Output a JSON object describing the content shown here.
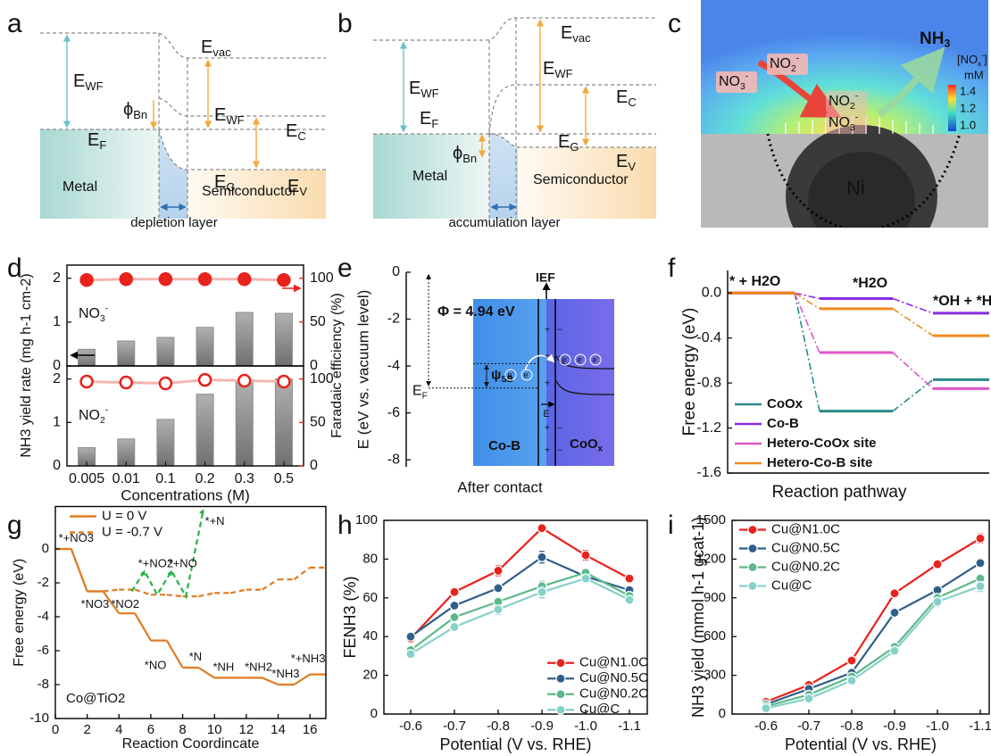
{
  "panel_labels": [
    "a",
    "b",
    "c",
    "d",
    "e",
    "f",
    "g",
    "h",
    "i"
  ],
  "diagrams": {
    "a": {
      "terms": [
        {
          "text": "E",
          "sub": "WF"
        },
        {
          "text": "E",
          "sub": "F"
        },
        {
          "text": "ϕ",
          "sub": "Bn"
        },
        {
          "text": "E",
          "sub": "vac"
        },
        {
          "text": "E",
          "sub": "WF"
        },
        {
          "text": "E",
          "sub": "C"
        },
        {
          "text": "E",
          "sub": "G"
        },
        {
          "text": "E",
          "sub": "V"
        }
      ],
      "metal": "Metal",
      "semiconductor": "Semiconductor",
      "layer": "depletion layer"
    },
    "b": {
      "terms": [
        {
          "text": "E",
          "sub": "vac"
        },
        {
          "text": "E",
          "sub": "WF"
        },
        {
          "text": "E",
          "sub": "F"
        },
        {
          "text": "ϕ",
          "sub": "Bn"
        },
        {
          "text": "E",
          "sub": "WF"
        },
        {
          "text": "E",
          "sub": "C"
        },
        {
          "text": "E",
          "sub": "G"
        },
        {
          "text": "E",
          "sub": "V"
        }
      ],
      "metal": "Metal",
      "semiconductor": "Semiconductor",
      "layer": "accumulation layer"
    },
    "c": {
      "ions": [
        {
          "text": "NO",
          "sub": "3",
          "sup": "-"
        },
        {
          "text": "NO",
          "sub": "2",
          "sup": "-"
        },
        {
          "text": "NO",
          "sub": "2",
          "sup": "-"
        },
        {
          "text": "NO",
          "sub": "3",
          "sup": "-"
        }
      ],
      "product": {
        "text": "NH",
        "sub": "3"
      },
      "colorbar_title": {
        "text": "[NO",
        "sub": "x",
        "sup": "-",
        "tail": "]"
      },
      "unit": "mM",
      "colorbar_ticks": [
        "1.4",
        "1.2",
        "1.0"
      ],
      "particle": "Ni"
    },
    "e": {
      "ylabel": "E (eV vs. vacuum level)",
      "xlabel": "After contact",
      "ylim": [
        -8.3,
        0
      ],
      "yticks": [
        0,
        -2,
        -4,
        -6,
        -8
      ],
      "work_function": "Φ = 4.94 eV",
      "field": "IEF",
      "fermi": {
        "text": "E",
        "sub": "F"
      },
      "barrier": {
        "text": "ψ",
        "sub": "SB"
      },
      "field_short": "E",
      "left": "Co-B",
      "right": {
        "text": "CoO",
        "sub": "x"
      },
      "electron": {
        "text": "e",
        "sup": "-"
      }
    }
  },
  "chart_data": [
    {
      "type": "bar",
      "xlabel": "Concentrations (M)",
      "ylabel": "NH3 yield rate (mg h-1 cm-2)",
      "y2label": "Faradaic efficiency (%)",
      "categories": [
        "0.005",
        "0.01",
        "0.1",
        "0.2",
        "0.3",
        "0.5"
      ],
      "subplots": [
        {
          "label": {
            "text": "NO",
            "sub": "3",
            "sup": "-"
          },
          "ylim": [
            0,
            2.3
          ],
          "yticks": [
            0,
            1,
            2
          ],
          "y2lim": [
            0,
            115
          ],
          "y2ticks": [
            0,
            50,
            100
          ],
          "series": [
            {
              "color": "#8c8c8c",
              "values": [
                0.38,
                0.57,
                0.65,
                0.88,
                1.22,
                1.2
              ]
            },
            {
              "color": "#e8221c",
              "axis": "y2",
              "marker": "filled",
              "values": [
                98,
                99,
                99,
                99,
                99,
                98
              ]
            }
          ]
        },
        {
          "label": {
            "text": "NO",
            "sub": "2",
            "sup": "-"
          },
          "ylim": [
            0,
            2.3
          ],
          "yticks": [
            0,
            1,
            2
          ],
          "y2lim": [
            0,
            115
          ],
          "y2ticks": [
            0,
            50,
            100
          ],
          "series": [
            {
              "color": "#8c8c8c",
              "values": [
                0.42,
                0.62,
                1.07,
                1.65,
                1.97,
                2.0
              ]
            },
            {
              "color": "#e8221c",
              "axis": "y2",
              "marker": "open",
              "values": [
                97,
                96,
                95,
                99,
                98,
                97
              ]
            }
          ]
        }
      ]
    },
    {
      "type": "step",
      "xlabel": "Reaction pathway",
      "ylabel": "Free energy (eV)",
      "categories": [
        "* + H2O",
        "*H2O",
        "*OH + *H"
      ],
      "ylim": [
        -1.6,
        0.2
      ],
      "yticks": [
        -1.6,
        -1.2,
        -0.8,
        -0.4,
        {
          "value": 0,
          "label": "0.0"
        }
      ],
      "legend": "lower left",
      "series": [
        {
          "name": "CoOx",
          "color": "#2a8a8a",
          "values": [
            0,
            -1.05,
            -0.77
          ]
        },
        {
          "name": "Co-B",
          "color": "#8a2be2",
          "values": [
            0,
            -0.05,
            -0.18
          ]
        },
        {
          "name": "Hetero-CoOx site",
          "color": "#e055c8",
          "values": [
            0,
            -0.53,
            -0.85
          ]
        },
        {
          "name": "Hetero-Co-B site",
          "color": "#f08a1e",
          "values": [
            0,
            -0.14,
            -0.38
          ]
        }
      ]
    },
    {
      "type": "step",
      "xlabel": "Reaction Coordincate",
      "ylabel": "Free energy (eV)",
      "annotation": "Co@TiO2",
      "x": [
        0,
        2,
        4,
        6,
        8,
        10,
        12,
        14,
        16
      ],
      "xlim": [
        0,
        17
      ],
      "xticks": [
        0,
        2,
        4,
        6,
        8,
        10,
        12,
        14,
        16
      ],
      "ylim": [
        -10,
        2.5
      ],
      "yticks": [
        -10,
        -8,
        -6,
        -4,
        -2,
        0
      ],
      "legend": "upper left",
      "step_labels": [
        "*+NO3",
        "*NO3",
        "*NO2",
        "*NO",
        "*N",
        "*NH",
        "*NH2",
        "*NH3",
        "*+NH3"
      ],
      "branch_labels": [
        "*+NO2",
        "*+NO",
        "*+N"
      ],
      "series": [
        {
          "name": "U = 0 V",
          "color": "#e07b20",
          "values": [
            0,
            -2.5,
            -3.8,
            -5.4,
            -7.0,
            -7.6,
            -7.6,
            -8.0,
            -7.4
          ]
        },
        {
          "name": "U = -0.7 V",
          "color": "#e07b20",
          "dash": true,
          "values": [
            0,
            -2.5,
            -2.4,
            -2.7,
            -2.8,
            -2.6,
            -2.4,
            -1.8,
            -1.1
          ]
        },
        {
          "color": "#2ab04a",
          "dash": true,
          "x": [
            4.8,
            5.6,
            6.4,
            7.3,
            8.2,
            9.3
          ],
          "values": [
            -2.5,
            -1.3,
            -2.7,
            -1.3,
            -2.8,
            2.3
          ]
        }
      ]
    },
    {
      "type": "line",
      "xlabel": "Potential (V vs. RHE)",
      "ylabel": "FENH3 (%)",
      "categories": [
        "-0.6",
        "-0.7",
        "-0.8",
        "-0.9",
        "-1.0",
        "-1.1"
      ],
      "ylim": [
        0,
        100
      ],
      "yticks": [
        0,
        20,
        40,
        60,
        80,
        100
      ],
      "legend": "lower right",
      "series": [
        {
          "name": "Cu@N1.0C",
          "color": "#e8221c",
          "values": [
            39,
            63,
            74,
            96,
            82,
            70
          ],
          "errors": [
            2,
            2,
            2.5,
            2,
            2.5,
            2
          ]
        },
        {
          "name": "Cu@N0.5C",
          "color": "#2f5f8a",
          "values": [
            40,
            56,
            65,
            81,
            71,
            64
          ],
          "errors": [
            1.5,
            1.5,
            1.5,
            3,
            2,
            1.5
          ]
        },
        {
          "name": "Cu@N0.2C",
          "color": "#5cb88a",
          "values": [
            33,
            50,
            58,
            66,
            73,
            61
          ],
          "errors": [
            1.5,
            2,
            2,
            2.5,
            2,
            2
          ]
        },
        {
          "name": "Cu@C",
          "color": "#86d1c8",
          "values": [
            31,
            45,
            54,
            63,
            70,
            59
          ],
          "errors": [
            2,
            2,
            2.5,
            3,
            2,
            2
          ]
        }
      ]
    },
    {
      "type": "line",
      "xlabel": "Potential (V vs. RHE)",
      "ylabel": "NH3 yield (mmol h-1 gcat-1)",
      "categories": [
        "-0.6",
        "-0.7",
        "-0.8",
        "-0.9",
        "-1.0",
        "-1.1"
      ],
      "ylim": [
        0,
        1500
      ],
      "yticks": [
        0,
        300,
        600,
        900,
        1200,
        1500
      ],
      "legend": "upper left",
      "series": [
        {
          "name": "Cu@N1.0C",
          "color": "#e8221c",
          "values": [
            95,
            225,
            415,
            935,
            1160,
            1360
          ],
          "errors": [
            12,
            15,
            15,
            20,
            30,
            35
          ]
        },
        {
          "name": "Cu@N0.5C",
          "color": "#2f5f8a",
          "values": [
            75,
            195,
            320,
            785,
            960,
            1170
          ],
          "errors": [
            10,
            12,
            15,
            15,
            25,
            20
          ]
        },
        {
          "name": "Cu@N0.2C",
          "color": "#5cb88a",
          "values": [
            60,
            150,
            290,
            520,
            900,
            1050
          ],
          "errors": [
            10,
            12,
            15,
            20,
            30,
            30
          ]
        },
        {
          "name": "Cu@C",
          "color": "#86d1c8",
          "values": [
            45,
            120,
            260,
            490,
            870,
            990
          ],
          "errors": [
            10,
            12,
            15,
            20,
            35,
            40
          ]
        }
      ]
    }
  ]
}
